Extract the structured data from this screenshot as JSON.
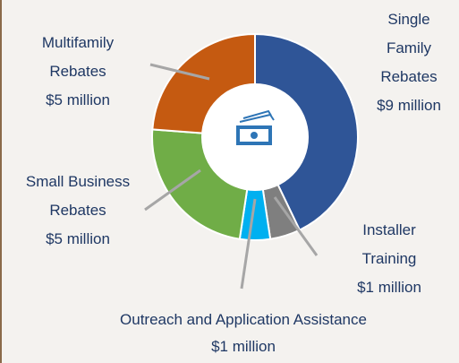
{
  "chart_data": {
    "type": "donut",
    "categories": [
      "Single Family Rebates",
      "Installer Training",
      "Outreach and Application Assistance",
      "Small Business Rebates",
      "Multifamily Rebates"
    ],
    "values": [
      9,
      1,
      1,
      5,
      5
    ],
    "value_labels": [
      "$9 million",
      "$1 million",
      "$1 million",
      "$5 million",
      "$5 million"
    ],
    "colors": [
      "#2f5597",
      "#7f7f7f",
      "#00b0f0",
      "#70ad47",
      "#c55a11"
    ]
  }
}
